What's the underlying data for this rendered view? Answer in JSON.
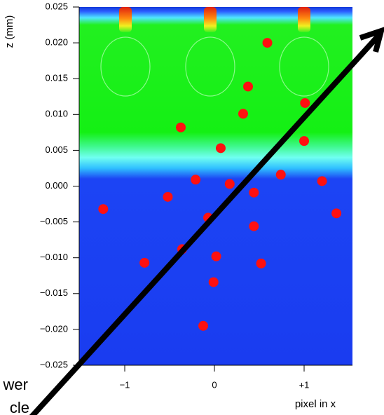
{
  "chart_data": {
    "type": "scatter",
    "y_label": "z (mm)",
    "x_label": "pixel in x",
    "annotations": [
      "wer",
      "cle"
    ],
    "color": "#ff1010",
    "x": [
      0.59,
      0.375,
      0.32,
      1.01,
      -0.375,
      0.07,
      1.0,
      0.74,
      -0.21,
      0.17,
      1.2,
      0.44,
      -0.52,
      -1.24,
      -0.07,
      1.36,
      0.44,
      -0.36,
      0.02,
      -0.78,
      0.52,
      -0.01,
      -0.125
    ],
    "values": [
      0.02,
      0.0139,
      0.0101,
      0.0116,
      0.0082,
      0.0053,
      0.0063,
      0.0016,
      0.0009,
      0.0003,
      0.0007,
      -0.0009,
      -0.0015,
      -0.0032,
      -0.0044,
      -0.0038,
      -0.0056,
      -0.0088,
      -0.0098,
      -0.0107,
      -0.0108,
      -0.0134,
      -0.0195
    ],
    "xlim": [
      -1.508,
      1.539
    ],
    "ylim": [
      -0.025,
      0.025
    ],
    "xticks": [
      {
        "value": -1,
        "label": "−1"
      },
      0,
      {
        "value": 1,
        "label": "+1"
      }
    ],
    "yticks": [
      {
        "value": 0.025,
        "label": "0.025"
      },
      {
        "value": 0.02,
        "label": "0.020"
      },
      {
        "value": 0.015,
        "label": "0.015"
      },
      {
        "value": 0.01,
        "label": "0.010"
      },
      {
        "value": 0.005,
        "label": "0.005"
      },
      {
        "value": 0,
        "label": "0.000"
      },
      {
        "value": -0.005,
        "label": "−0.005"
      },
      {
        "value": -0.01,
        "label": "−0.010"
      },
      {
        "value": -0.015,
        "label": "−0.015"
      },
      {
        "value": -0.02,
        "label": "−0.020"
      },
      {
        "value": -0.025,
        "label": "−0.025"
      }
    ]
  }
}
